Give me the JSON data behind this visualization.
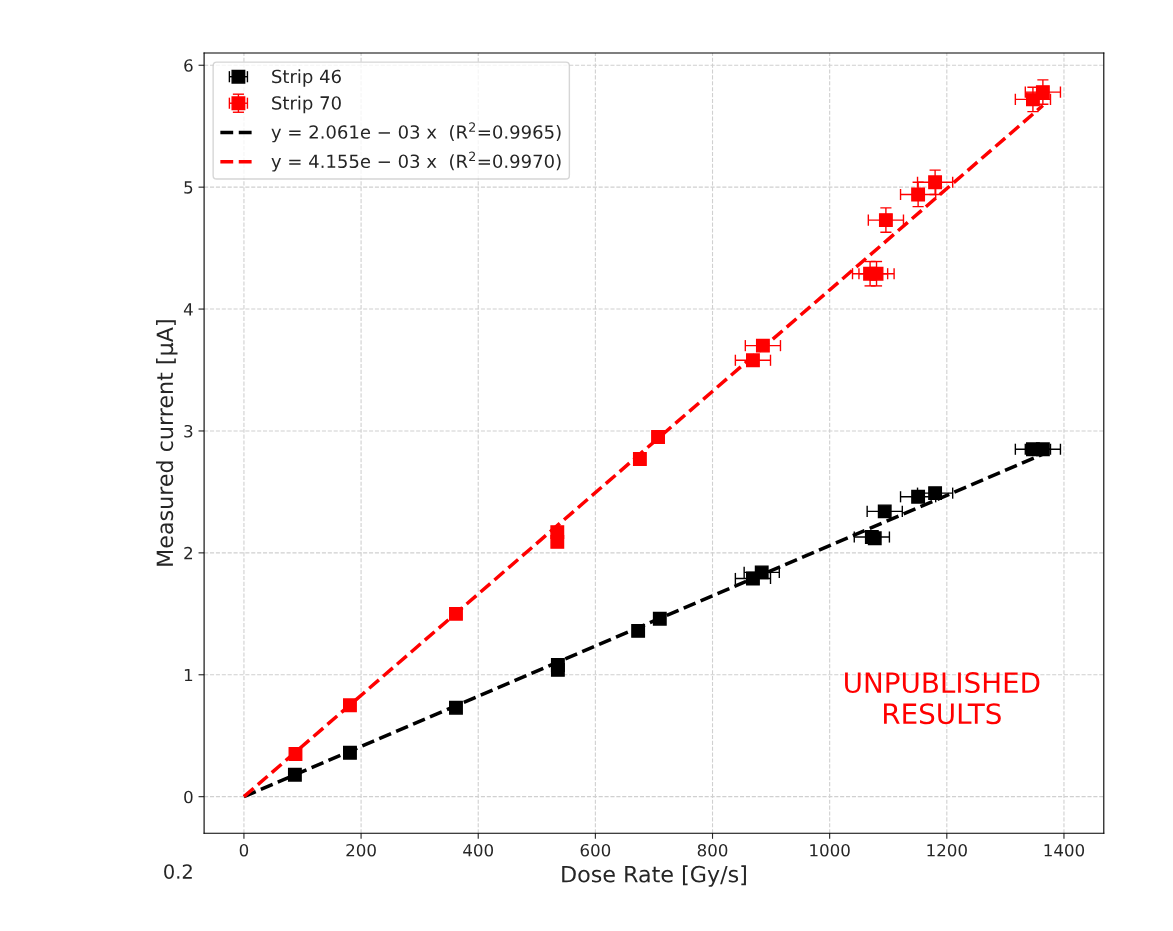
{
  "chart_data": {
    "type": "scatter",
    "xlabel": "Dose Rate [Gy/s]",
    "ylabel": "Measured current [μA]",
    "xlim": [
      -68,
      1468
    ],
    "ylim": [
      -0.3,
      6.1
    ],
    "xticks": [
      0,
      200,
      400,
      600,
      800,
      1000,
      1200,
      1400
    ],
    "yticks": [
      0,
      1,
      2,
      3,
      4,
      5,
      6
    ],
    "grid": true,
    "legend": "top left",
    "series": [
      {
        "name": "Strip 46",
        "marker": "square",
        "color": "#000000",
        "x": [
          87,
          181,
          362,
          536,
          536,
          673,
          710,
          869,
          884,
          1072,
          1077,
          1094,
          1151,
          1180,
          1347,
          1364
        ],
        "values": [
          0.18,
          0.36,
          0.73,
          1.04,
          1.08,
          1.36,
          1.46,
          1.79,
          1.84,
          2.13,
          2.12,
          2.34,
          2.46,
          2.49,
          2.85,
          2.85
        ],
        "xerrors": [
          null,
          null,
          null,
          null,
          null,
          null,
          null,
          30,
          30,
          30,
          null,
          30,
          30,
          30,
          30,
          30
        ]
      },
      {
        "name": "Strip 70",
        "marker": "square",
        "color": "#ff0000",
        "x": [
          88,
          181,
          362,
          535,
          535,
          676,
          707,
          869,
          886,
          1069,
          1080,
          1096,
          1151,
          1180,
          1347,
          1364
        ],
        "values": [
          0.35,
          0.75,
          1.5,
          2.17,
          2.09,
          2.77,
          2.95,
          3.58,
          3.7,
          4.29,
          4.29,
          4.73,
          4.94,
          5.04,
          5.72,
          5.78
        ],
        "xerrors": [
          null,
          null,
          null,
          null,
          null,
          null,
          null,
          30,
          30,
          30,
          30,
          30,
          30,
          30,
          30,
          30
        ],
        "errors": [
          null,
          null,
          null,
          null,
          null,
          null,
          null,
          null,
          null,
          0.1,
          0.1,
          0.1,
          0.1,
          0.1,
          0.1,
          0.1
        ]
      },
      {
        "name": "y = 2.061e − 03 x  (R$^{2}$=0.9965)",
        "type": "line",
        "marker": "none",
        "line_style": "dashed",
        "color": "#000000",
        "x": [
          0,
          1364
        ],
        "values": [
          0,
          2.81
        ]
      },
      {
        "name": "y = 4.155e − 03 x  (R$^{2}$=0.9970)",
        "type": "line",
        "marker": "none",
        "line_style": "dashed",
        "color": "#ff0000",
        "x": [
          0,
          1364
        ],
        "values": [
          0,
          5.67
        ]
      }
    ],
    "annotations": [
      "UNPUBLISHED\nRESULTS",
      "0.2"
    ]
  }
}
